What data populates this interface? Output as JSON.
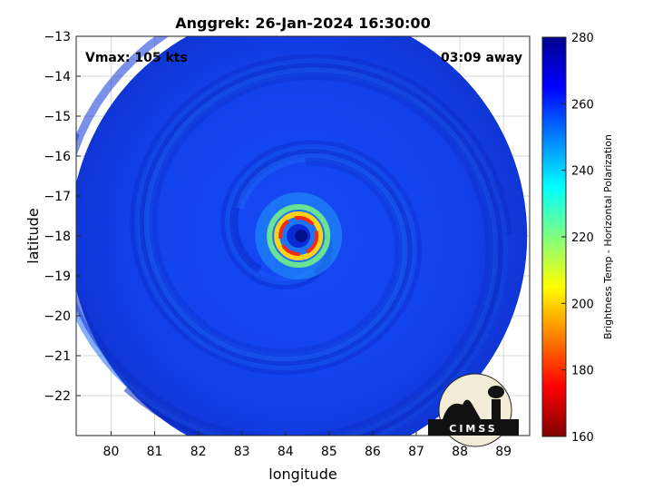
{
  "chart_data": {
    "type": "heatmap",
    "title": "Anggrek: 26-Jan-2024 16:30:00",
    "xlabel": "longitude",
    "ylabel": "latitude",
    "xlim": [
      79.2,
      89.6
    ],
    "ylim": [
      -23,
      -13
    ],
    "xticks": [
      "80",
      "81",
      "82",
      "83",
      "84",
      "85",
      "86",
      "87",
      "88",
      "89"
    ],
    "yticks": [
      "-13",
      "-14",
      "-15",
      "-16",
      "-17",
      "-18",
      "-19",
      "-20",
      "-21",
      "-22"
    ],
    "grid": true,
    "swath_center": {
      "lon": 84.3,
      "lat": -18.0
    },
    "eye_center": {
      "lon": 84.3,
      "lat": -18.0
    },
    "annotations": {
      "vmax": "Vmax: 105 kts",
      "time_away": "03:09 away"
    },
    "colorbar": {
      "label": "Brightness Temp - Horizontal Polarization",
      "range": [
        160,
        280
      ],
      "ticks": [
        "160",
        "180",
        "200",
        "220",
        "240",
        "260",
        "280"
      ],
      "colormap": "jet"
    },
    "logo_text": "CIMSS"
  },
  "colors": {
    "background": "#ffffff",
    "outside_swath": "#ffffff",
    "grid": "#d9d9d9"
  }
}
